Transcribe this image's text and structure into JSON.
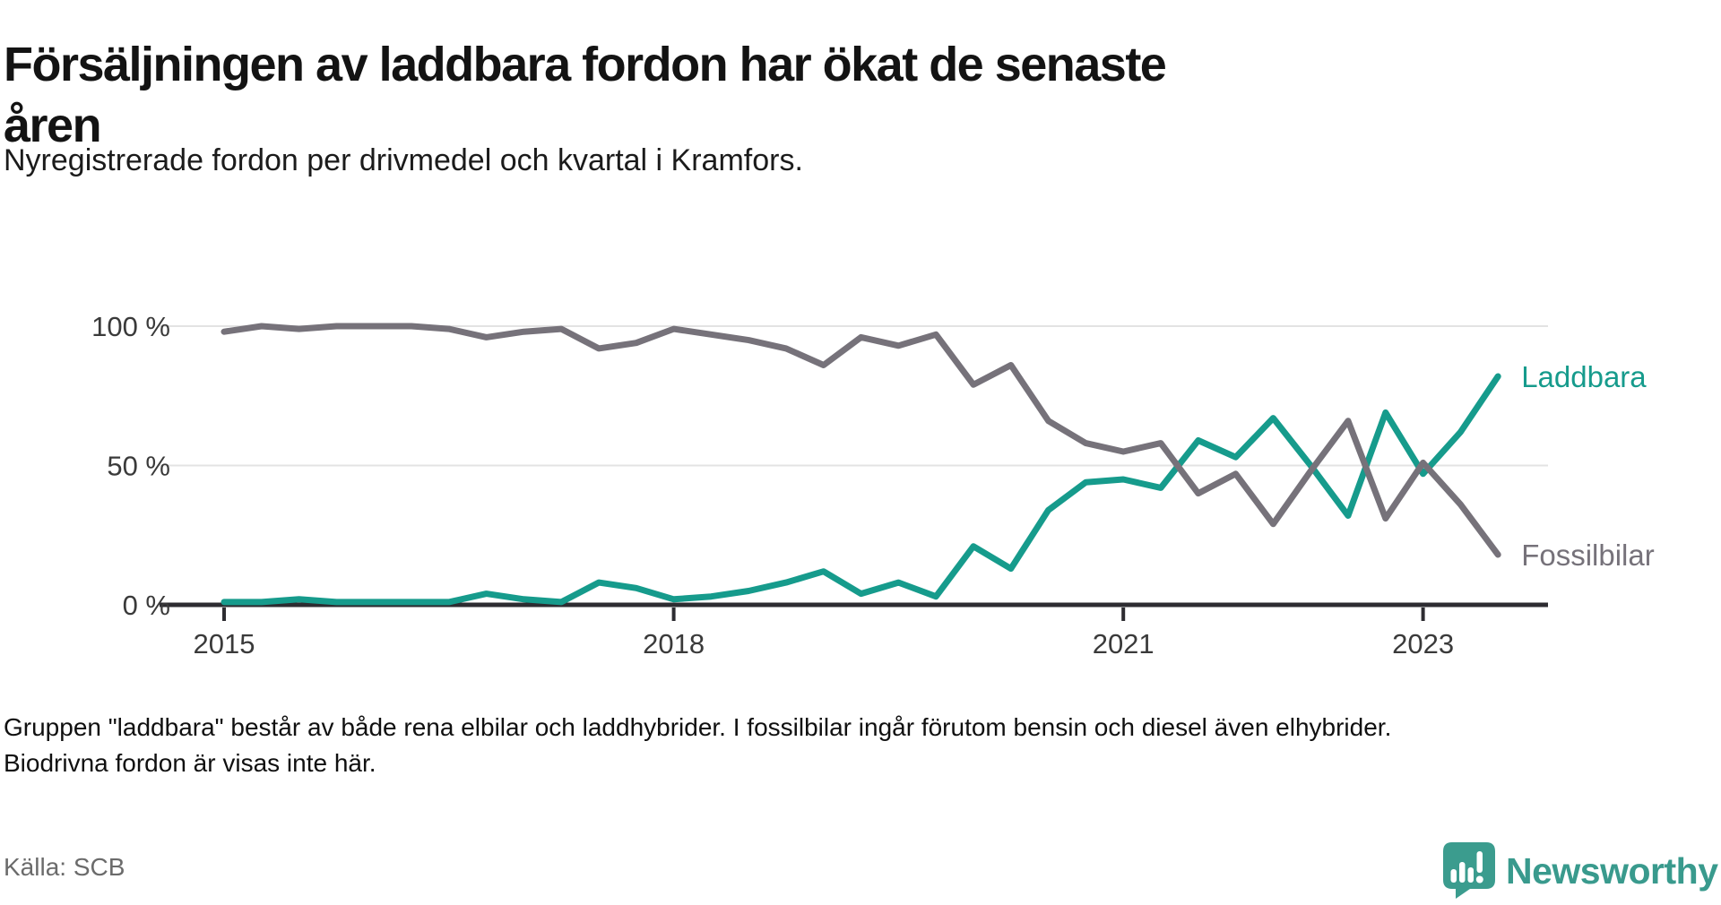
{
  "header": {
    "title": "Försäljningen av laddbara fordon har ökat de senaste åren",
    "subtitle": "Nyregistrerade fordon per drivmedel och kvartal i Kramfors."
  },
  "chart_data": {
    "type": "line",
    "title": "Försäljningen av laddbara fordon har ökat de senaste åren",
    "xlabel": "",
    "ylabel": "",
    "ylim": [
      0,
      100
    ],
    "grid": true,
    "legend_position": "end-of-line",
    "x_unit": "quarter",
    "categories": [
      "2015 Q1",
      "2015 Q2",
      "2015 Q3",
      "2015 Q4",
      "2016 Q1",
      "2016 Q2",
      "2016 Q3",
      "2016 Q4",
      "2017 Q1",
      "2017 Q2",
      "2017 Q3",
      "2017 Q4",
      "2018 Q1",
      "2018 Q2",
      "2018 Q3",
      "2018 Q4",
      "2019 Q1",
      "2019 Q2",
      "2019 Q3",
      "2019 Q4",
      "2020 Q1",
      "2020 Q2",
      "2020 Q3",
      "2020 Q4",
      "2021 Q1",
      "2021 Q2",
      "2021 Q3",
      "2021 Q4",
      "2022 Q1",
      "2022 Q2",
      "2022 Q3",
      "2022 Q4",
      "2023 Q1",
      "2023 Q2",
      "2023 Q3"
    ],
    "series": [
      {
        "name": "Laddbara",
        "color": "#169b8c",
        "values": [
          1,
          1,
          2,
          1,
          1,
          1,
          1,
          4,
          2,
          1,
          8,
          6,
          2,
          3,
          5,
          8,
          12,
          4,
          8,
          3,
          21,
          13,
          34,
          44,
          45,
          42,
          59,
          53,
          67,
          50,
          32,
          69,
          47,
          62,
          82
        ]
      },
      {
        "name": "Fossilbilar",
        "color": "#76727a",
        "values": [
          98,
          100,
          99,
          100,
          100,
          100,
          99,
          96,
          98,
          99,
          92,
          94,
          99,
          97,
          95,
          92,
          86,
          96,
          93,
          97,
          79,
          86,
          66,
          58,
          55,
          58,
          40,
          47,
          29,
          48,
          66,
          31,
          51,
          36,
          18
        ]
      }
    ],
    "y_ticks": [
      {
        "label": "0 %",
        "value": 0
      },
      {
        "label": "50 %",
        "value": 50
      },
      {
        "label": "100 %",
        "value": 100
      }
    ],
    "x_ticks": [
      {
        "label": "2015",
        "index": 0
      },
      {
        "label": "2018",
        "index": 12
      },
      {
        "label": "2021",
        "index": 24
      },
      {
        "label": "2023",
        "index": 32
      }
    ],
    "axis_color": "#2d2c31",
    "grid_color": "#e3e3e3",
    "tick_label_color": "#3a3a3a"
  },
  "footnote": {
    "text": "Gruppen \"laddbara\" består av både rena elbilar och laddhybrider. I fossilbilar ingår förutom bensin och diesel även elhybrider. Biodrivna fordon är visas inte här."
  },
  "source": {
    "label": "Källa: SCB"
  },
  "logo": {
    "wordmark": "Newsworthy",
    "color": "#399a8d",
    "icon": "newsworthy-speech-bubble-barchart-icon"
  }
}
